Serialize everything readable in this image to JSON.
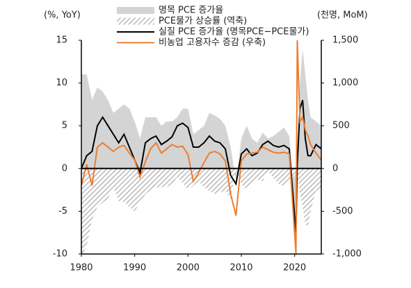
{
  "chart_data": {
    "type": "line",
    "y_label": "(%, YoY)",
    "y2_label": "(천명, MoM)",
    "x": [
      1980,
      1981,
      1982,
      1983,
      1984,
      1985,
      1986,
      1987,
      1988,
      1989,
      1990,
      1991,
      1992,
      1993,
      1994,
      1995,
      1996,
      1997,
      1998,
      1999,
      2000,
      2001,
      2002,
      2003,
      2004,
      2005,
      2006,
      2007,
      2008,
      2009,
      2010,
      2011,
      2012,
      2013,
      2014,
      2015,
      2016,
      2017,
      2018,
      2019,
      2020.25,
      2020.5,
      2021,
      2021.5,
      2022,
      2022.5,
      2023,
      2024,
      2025
    ],
    "xlim": [
      1980,
      2025
    ],
    "xticks": [
      1980,
      1990,
      2000,
      2010,
      2020
    ],
    "ylim": [
      -10,
      15
    ],
    "yticks": [
      15,
      10,
      5,
      0,
      -5,
      -10
    ],
    "y2lim": [
      -1000,
      1500
    ],
    "y2ticks": [
      {
        "value": 1500,
        "label": "1,500"
      },
      {
        "value": 1000,
        "label": "1,000"
      },
      500,
      0,
      -500,
      {
        "value": -1000,
        "label": "-1,000"
      }
    ],
    "series": [
      {
        "name": "명목 PCE 증가율",
        "style": "area",
        "color": "#d4d4d4",
        "values": [
          11,
          11,
          8,
          9.5,
          9,
          8,
          6.5,
          7,
          7.5,
          7,
          5.5,
          3.5,
          6,
          6,
          6,
          5,
          5.5,
          5.5,
          6,
          7,
          7,
          4,
          4.5,
          5,
          6.5,
          6.2,
          5.8,
          5,
          2.5,
          -1.5,
          3.5,
          5,
          3.5,
          3,
          4.2,
          3.5,
          3.8,
          4.3,
          4.8,
          3.8,
          -7,
          1,
          10,
          14,
          11,
          8,
          6,
          5.5,
          5
        ]
      },
      {
        "name": "PCE물가 상승률 (역축)",
        "style": "hatched-area",
        "inverted": true,
        "color": "#b8b8b8",
        "values": [
          10.5,
          9,
          6,
          4.5,
          4,
          3.5,
          2.2,
          3.8,
          3.9,
          4.5,
          5,
          4,
          3,
          2.5,
          2.2,
          2.2,
          2.2,
          1.8,
          1,
          1.7,
          2.5,
          2,
          1.5,
          2.2,
          2.6,
          3,
          2.8,
          2.6,
          3.5,
          0.2,
          1.8,
          2.5,
          1.9,
          1.3,
          1.5,
          0.3,
          1.1,
          1.8,
          2.1,
          1.5,
          0.6,
          0.9,
          3,
          4.5,
          6.5,
          6.8,
          5,
          2.6,
          2.5
        ]
      },
      {
        "name": "실질 PCE 증가율 (명목PCE−PCE물가)",
        "style": "line",
        "color": "#000000",
        "values": [
          0,
          1.5,
          2,
          5,
          6,
          5,
          4,
          3,
          4,
          2.5,
          1,
          -0.5,
          3,
          3.5,
          3.8,
          2.8,
          3.2,
          3.7,
          5,
          5.3,
          4.8,
          2.5,
          2.5,
          3,
          3.8,
          3.2,
          3,
          2.3,
          -0.8,
          -1.8,
          1.7,
          2.3,
          1.5,
          1.8,
          2.8,
          3.2,
          2.7,
          2.5,
          2.7,
          2.3,
          -7.5,
          0.5,
          7,
          8,
          3.5,
          1.5,
          1.5,
          2.8,
          2.3
        ]
      },
      {
        "name": "비농업 고용자수 증감 (우축)",
        "style": "line",
        "axis": "y2",
        "color": "#ed7d31",
        "values": [
          -200,
          50,
          -200,
          250,
          300,
          250,
          200,
          250,
          270,
          180,
          100,
          -100,
          80,
          230,
          300,
          180,
          230,
          280,
          250,
          260,
          160,
          -150,
          -50,
          70,
          180,
          200,
          170,
          90,
          -300,
          -550,
          90,
          170,
          180,
          190,
          250,
          220,
          190,
          180,
          190,
          170,
          -1000,
          1500,
          550,
          600,
          450,
          380,
          280,
          180,
          100
        ]
      }
    ]
  }
}
